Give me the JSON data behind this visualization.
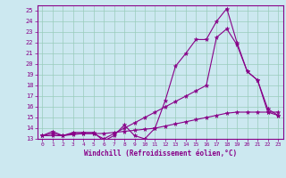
{
  "xlabel": "Windchill (Refroidissement éolien,°C)",
  "xlim": [
    -0.5,
    23.5
  ],
  "ylim": [
    13,
    25.5
  ],
  "yticks": [
    13,
    14,
    15,
    16,
    17,
    18,
    19,
    20,
    21,
    22,
    23,
    24,
    25
  ],
  "xticks": [
    0,
    1,
    2,
    3,
    4,
    5,
    6,
    7,
    8,
    9,
    10,
    11,
    12,
    13,
    14,
    15,
    16,
    17,
    18,
    19,
    20,
    21,
    22,
    23
  ],
  "bg_color": "#cce8f0",
  "line_color": "#880088",
  "grid_color": "#99ccbb",
  "series": [
    {
      "x": [
        0,
        1,
        2,
        3,
        4,
        5,
        6,
        7,
        8,
        9,
        10,
        11,
        12,
        13,
        14,
        15,
        16,
        17,
        18,
        19,
        20,
        21,
        22,
        23
      ],
      "y": [
        13.3,
        13.7,
        13.3,
        13.6,
        13.6,
        13.6,
        12.8,
        13.3,
        14.3,
        13.3,
        13.0,
        14.0,
        16.6,
        19.8,
        21.0,
        22.3,
        22.3,
        24.0,
        25.2,
        22.0,
        19.3,
        18.5,
        15.8,
        15.2
      ]
    },
    {
      "x": [
        0,
        1,
        2,
        3,
        4,
        5,
        6,
        7,
        8,
        9,
        10,
        11,
        12,
        13,
        14,
        15,
        16,
        17,
        18,
        19,
        20,
        21,
        22,
        23
      ],
      "y": [
        13.3,
        13.5,
        13.3,
        13.5,
        13.5,
        13.5,
        13.0,
        13.5,
        14.0,
        14.5,
        15.0,
        15.5,
        16.0,
        16.5,
        17.0,
        17.5,
        18.0,
        22.5,
        23.3,
        21.8,
        19.3,
        18.5,
        15.5,
        15.2
      ]
    },
    {
      "x": [
        0,
        1,
        2,
        3,
        4,
        5,
        6,
        7,
        8,
        9,
        10,
        11,
        12,
        13,
        14,
        15,
        16,
        17,
        18,
        19,
        20,
        21,
        22,
        23
      ],
      "y": [
        13.3,
        13.3,
        13.3,
        13.4,
        13.5,
        13.5,
        13.5,
        13.6,
        13.7,
        13.8,
        13.9,
        14.0,
        14.2,
        14.4,
        14.6,
        14.8,
        15.0,
        15.2,
        15.4,
        15.5,
        15.5,
        15.5,
        15.5,
        15.5
      ]
    }
  ]
}
